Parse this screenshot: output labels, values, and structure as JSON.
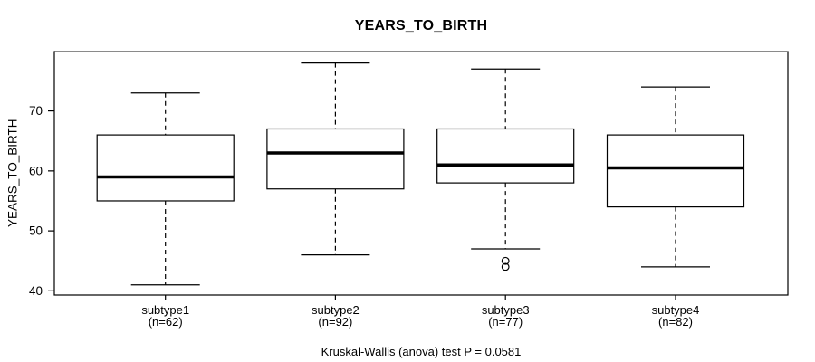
{
  "chart_data": {
    "type": "box",
    "title": "YEARS_TO_BIRTH",
    "ylabel": "YEARS_TO_BIRTH",
    "xlabel": "",
    "footer": "Kruskal-Wallis (anova) test P = 0.0581",
    "y_ticks": [
      40,
      50,
      60,
      70
    ],
    "ylim": [
      39.3,
      79.9
    ],
    "grid": false,
    "legend": "none",
    "line_color": "#000000",
    "box_fill": "#ffffff",
    "groups": [
      {
        "label": "subtype1",
        "n_label": "(n=62)",
        "n": 62,
        "whisker_low": 41,
        "q1": 55,
        "median": 59,
        "q3": 66,
        "whisker_high": 73,
        "outliers": []
      },
      {
        "label": "subtype2",
        "n_label": "(n=92)",
        "n": 92,
        "whisker_low": 46,
        "q1": 57,
        "median": 63,
        "q3": 67,
        "whisker_high": 78,
        "outliers": []
      },
      {
        "label": "subtype3",
        "n_label": "(n=77)",
        "n": 77,
        "whisker_low": 47,
        "q1": 58,
        "median": 61,
        "q3": 67,
        "whisker_high": 77,
        "outliers": [
          45,
          44
        ]
      },
      {
        "label": "subtype4",
        "n_label": "(n=82)",
        "n": 82,
        "whisker_low": 44,
        "q1": 54,
        "median": 60.5,
        "q3": 66,
        "whisker_high": 74,
        "outliers": []
      }
    ]
  }
}
